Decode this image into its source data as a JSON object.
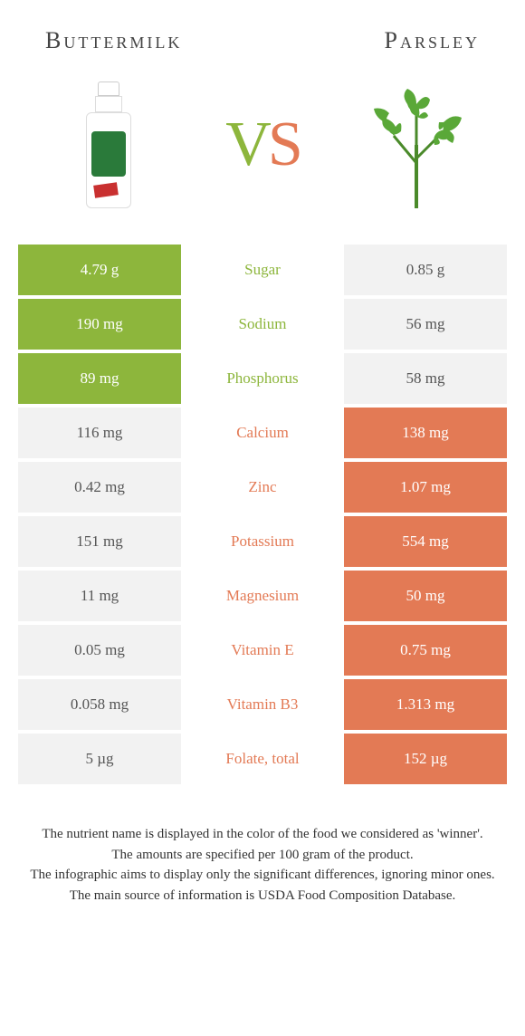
{
  "header": {
    "left_title": "Buttermilk",
    "right_title": "Parsley"
  },
  "vs": {
    "v": "V",
    "s": "S"
  },
  "colors": {
    "green": "#8db63c",
    "orange": "#e37a55",
    "grey": "#f2f2f2"
  },
  "rows": [
    {
      "nutrient": "Sugar",
      "left": "4.79 g",
      "right": "0.85 g",
      "winner": "left"
    },
    {
      "nutrient": "Sodium",
      "left": "190 mg",
      "right": "56 mg",
      "winner": "left"
    },
    {
      "nutrient": "Phosphorus",
      "left": "89 mg",
      "right": "58 mg",
      "winner": "left"
    },
    {
      "nutrient": "Calcium",
      "left": "116 mg",
      "right": "138 mg",
      "winner": "right"
    },
    {
      "nutrient": "Zinc",
      "left": "0.42 mg",
      "right": "1.07 mg",
      "winner": "right"
    },
    {
      "nutrient": "Potassium",
      "left": "151 mg",
      "right": "554 mg",
      "winner": "right"
    },
    {
      "nutrient": "Magnesium",
      "left": "11 mg",
      "right": "50 mg",
      "winner": "right"
    },
    {
      "nutrient": "Vitamin E",
      "left": "0.05 mg",
      "right": "0.75 mg",
      "winner": "right"
    },
    {
      "nutrient": "Vitamin B3",
      "left": "0.058 mg",
      "right": "1.313 mg",
      "winner": "right"
    },
    {
      "nutrient": "Folate, total",
      "left": "5 µg",
      "right": "152 µg",
      "winner": "right"
    }
  ],
  "footer": {
    "line1": "The nutrient name is displayed in the color of the food we considered as 'winner'.",
    "line2": "The amounts are specified per 100 gram of the product.",
    "line3": "The infographic aims to display only the significant differences, ignoring minor ones.",
    "line4": "The main source of information is USDA Food Composition Database."
  }
}
